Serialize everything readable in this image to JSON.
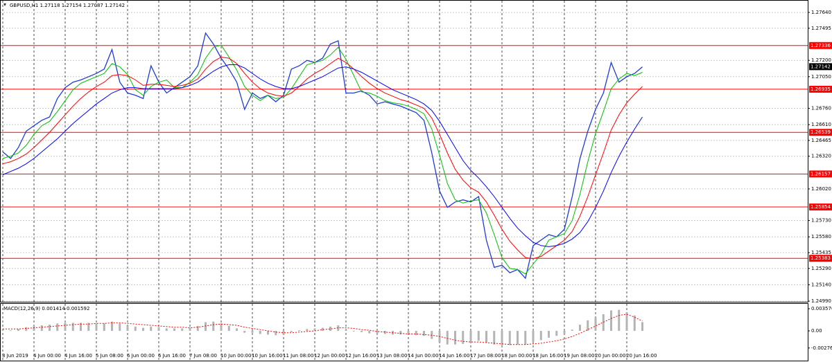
{
  "chart_data": [
    {
      "type": "line",
      "title": "GBPUSD,H1  1.27118 1.27154 1.27087 1.27142",
      "categories": [
        "3 Jun 2019",
        null,
        null,
        null,
        "4 Jun 00:00",
        null,
        null,
        null,
        "4 Jun 16:00",
        null,
        null,
        null,
        "5 Jun 08:00",
        null,
        null,
        null,
        "6 Jun 00:00",
        null,
        null,
        null,
        "6 Jun 16:00",
        null,
        null,
        null,
        "7 Jun 08:00",
        null,
        null,
        null,
        "10 Jun 00:00",
        null,
        null,
        null,
        "10 Jun 16:00",
        null,
        null,
        null,
        "11 Jun 08:00",
        null,
        null,
        null,
        "12 Jun 00:00",
        null,
        null,
        null,
        "12 Jun 16:00",
        null,
        null,
        null,
        "13 Jun 08:00",
        null,
        null,
        null,
        "14 Jun 00:00",
        null,
        null,
        null,
        "14 Jun 16:00",
        null,
        null,
        null,
        "17 Jun 08:00",
        null,
        null,
        null,
        "18 Jun 00:00",
        null,
        null,
        null,
        "18 Jun 16:00",
        null,
        null,
        null,
        "19 Jun 08:00",
        null,
        null,
        null,
        "20 Jun 00:00",
        null,
        null,
        null,
        "20 Jun 16:00",
        null,
        null
      ],
      "series": [
        {
          "color": "#1e3ad8",
          "values": [
            1.2636,
            1.263,
            1.264,
            1.2655,
            1.266,
            1.2665,
            1.2668,
            1.2685,
            1.2695,
            1.27,
            1.2702,
            1.2705,
            1.2708,
            1.2712,
            1.273,
            1.27,
            1.269,
            1.2688,
            1.2685,
            1.2715,
            1.27,
            1.269,
            1.2695,
            1.27,
            1.2705,
            1.2715,
            1.2745,
            1.2735,
            1.2722,
            1.2712,
            1.27,
            1.2675,
            1.269,
            1.2685,
            1.2688,
            1.2682,
            1.2688,
            1.2712,
            1.2715,
            1.272,
            1.2718,
            1.2722,
            1.2735,
            1.2738,
            1.269,
            1.269,
            1.2692,
            1.2688,
            1.268,
            1.2682,
            1.268,
            1.2678,
            1.2675,
            1.2672,
            1.2665,
            1.2635,
            1.26,
            1.2585,
            1.259,
            1.2592,
            1.259,
            1.2595,
            1.2555,
            1.253,
            1.2532,
            1.2525,
            1.2528,
            1.252,
            1.255,
            1.2555,
            1.256,
            1.2558,
            1.2565,
            1.2595,
            1.263,
            1.2655,
            1.2675,
            1.269,
            1.2718,
            1.27,
            1.2705,
            1.2708,
            1.2714
          ]
        },
        {
          "color": "#00c000",
          "values": [
            1.263,
            1.2632,
            1.2635,
            1.2642,
            1.2652,
            1.266,
            1.2664,
            1.2673,
            1.2683,
            1.2693,
            1.2699,
            1.2702,
            1.2705,
            1.2708,
            1.2717,
            1.2714,
            1.2707,
            1.2693,
            1.2688,
            1.2696,
            1.27,
            1.2702,
            1.2695,
            1.2695,
            1.27,
            1.2707,
            1.2722,
            1.2732,
            1.2734,
            1.2723,
            1.2711,
            1.2696,
            1.2688,
            1.2683,
            1.2688,
            1.2685,
            1.2686,
            1.2694,
            1.2705,
            1.2716,
            1.2718,
            1.272,
            1.2725,
            1.2732,
            1.2721,
            1.2706,
            1.2691,
            1.269,
            1.2687,
            1.2683,
            1.2681,
            1.268,
            1.2678,
            1.2675,
            1.2671,
            1.2657,
            1.2633,
            1.2607,
            1.2592,
            1.2589,
            1.2591,
            1.2592,
            1.258,
            1.256,
            1.2539,
            1.2529,
            1.2528,
            1.2524,
            1.2533,
            1.2542,
            1.2555,
            1.2558,
            1.2561,
            1.2573,
            1.2597,
            1.2627,
            1.2653,
            1.2673,
            1.2694,
            1.2703,
            1.2708,
            1.2706,
            1.2709
          ]
        },
        {
          "color": "#ff0000",
          "values": [
            1.2625,
            1.2627,
            1.263,
            1.2634,
            1.264,
            1.2647,
            1.2654,
            1.2662,
            1.267,
            1.2678,
            1.2685,
            1.2691,
            1.2696,
            1.27,
            1.2706,
            1.2707,
            1.2706,
            1.2702,
            1.2697,
            1.2698,
            1.2698,
            1.2697,
            1.2696,
            1.2697,
            1.2699,
            1.2703,
            1.2712,
            1.2719,
            1.2723,
            1.2722,
            1.2717,
            1.2708,
            1.27,
            1.2694,
            1.269,
            1.2688,
            1.2687,
            1.269,
            1.2696,
            1.2703,
            1.2708,
            1.2712,
            1.2717,
            1.2722,
            1.2718,
            1.2712,
            1.2705,
            1.2699,
            1.2694,
            1.269,
            1.2687,
            1.2684,
            1.2682,
            1.2679,
            1.2676,
            1.2667,
            1.2652,
            1.2635,
            1.262,
            1.261,
            1.2603,
            1.2599,
            1.259,
            1.2578,
            1.2565,
            1.2554,
            1.2546,
            1.2539,
            1.2538,
            1.254,
            1.2545,
            1.255,
            1.2555,
            1.2563,
            1.2577,
            1.2595,
            1.2615,
            1.2635,
            1.2656,
            1.267,
            1.2681,
            1.2689,
            1.2696
          ]
        },
        {
          "color": "#0000ff",
          "values": [
            1.2615,
            1.2618,
            1.2621,
            1.2625,
            1.263,
            1.2636,
            1.2642,
            1.2648,
            1.2655,
            1.2662,
            1.2668,
            1.2674,
            1.268,
            1.2685,
            1.269,
            1.2693,
            1.2695,
            1.2695,
            1.2694,
            1.2694,
            1.2694,
            1.2694,
            1.2694,
            1.2695,
            1.2697,
            1.27,
            1.2705,
            1.271,
            1.2714,
            1.2716,
            1.2716,
            1.2713,
            1.2708,
            1.2703,
            1.2699,
            1.2696,
            1.2694,
            1.2694,
            1.2696,
            1.2699,
            1.2702,
            1.2705,
            1.2709,
            1.2713,
            1.2714,
            1.2712,
            1.2709,
            1.2705,
            1.2701,
            1.2697,
            1.2693,
            1.269,
            1.2687,
            1.2684,
            1.268,
            1.2674,
            1.2664,
            1.2652,
            1.264,
            1.2628,
            1.2619,
            1.2612,
            1.2604,
            1.2595,
            1.2585,
            1.2575,
            1.2566,
            1.2559,
            1.2553,
            1.255,
            1.2549,
            1.255,
            1.2552,
            1.2556,
            1.2562,
            1.2572,
            1.2585,
            1.26,
            1.2617,
            1.2632,
            1.2645,
            1.2657,
            1.2668
          ]
        }
      ],
      "levels": {
        "color": "#ff0000",
        "values": [
          1.27336,
          1.26935,
          1.26539,
          1.26157,
          1.25854,
          1.25383
        ]
      },
      "current_price": 1.27142,
      "ylim": [
        1.24984,
        1.27754
      ],
      "yticks": [
        {
          "value": 1.2764,
          "label": "1.27640"
        },
        1.27495,
        {
          "value": 1.272,
          "label": "1.27200"
        },
        {
          "value": 1.2705,
          "label": "1.27050"
        },
        {
          "value": 1.2676,
          "label": "1.26760"
        },
        {
          "value": 1.2661,
          "label": "1.26610"
        },
        1.26465,
        {
          "value": 1.2632,
          "label": "1.26320"
        },
        {
          "value": 1.2602,
          "label": "1.26020"
        },
        {
          "value": 1.2573,
          "label": "1.25730"
        },
        {
          "value": 1.2558,
          "label": "1.25580"
        },
        1.25435,
        {
          "value": 1.2529,
          "label": "1.25290"
        },
        {
          "value": 1.2514,
          "label": "1.25140"
        },
        {
          "value": 1.2499,
          "label": "1.24990"
        }
      ],
      "grid": true
    },
    {
      "type": "macd",
      "title": "MACD(12,26,9) 0.001414 0.001592",
      "color": "#b4b4b4",
      "values": [
        0.0002,
        0.0001,
        0.0003,
        0.0006,
        0.0008,
        0.0009,
        0.001,
        0.0012,
        0.0013,
        0.0013,
        0.0013,
        0.0013,
        0.0012,
        0.0012,
        0.0015,
        0.0012,
        0.0009,
        0.0007,
        0.0005,
        0.0007,
        0.0006,
        0.0004,
        0.0004,
        0.0004,
        0.0005,
        0.0008,
        0.0014,
        0.0015,
        0.0012,
        0.0008,
        0.0004,
        -0.0003,
        -0.0003,
        -0.0005,
        -0.0006,
        -0.0007,
        -0.0006,
        -0.0002,
        0.0001,
        0.0003,
        0.0004,
        0.0005,
        0.0007,
        0.0009,
        0.0002,
        -0.0001,
        -0.0002,
        -0.0004,
        -0.0005,
        -0.0005,
        -0.0006,
        -0.0006,
        -0.0006,
        -0.0007,
        -0.0008,
        -0.0013,
        -0.0019,
        -0.0022,
        -0.0022,
        -0.0021,
        -0.0019,
        -0.0016,
        -0.0019,
        -0.0022,
        -0.0023,
        -0.0023,
        -0.0022,
        -0.0022,
        -0.0018,
        -0.0015,
        -0.0011,
        -0.0008,
        -0.0005,
        0.0002,
        0.001,
        0.0017,
        0.0022,
        0.0027,
        0.0033,
        0.0034,
        0.003,
        0.0025,
        0.001414
      ],
      "signal": {
        "color": "#ff0000",
        "values": [
          0.0003,
          0.0003,
          0.0003,
          0.0004,
          0.0005,
          0.0006,
          0.0007,
          0.0008,
          0.0009,
          0.001,
          0.0011,
          0.0011,
          0.0012,
          0.0012,
          0.0013,
          0.0013,
          0.0012,
          0.0011,
          0.001,
          0.0009,
          0.0008,
          0.0007,
          0.0006,
          0.0006,
          0.0005,
          0.0006,
          0.0008,
          0.001,
          0.0011,
          0.001,
          0.0009,
          0.0006,
          0.0004,
          0.0002,
          0.0,
          -0.0002,
          -0.0003,
          -0.0003,
          -0.0002,
          -0.0001,
          0.0,
          0.0002,
          0.0003,
          0.0005,
          0.0005,
          0.0004,
          0.0002,
          0.0001,
          -0.0001,
          -0.0002,
          -0.0003,
          -0.0004,
          -0.0005,
          -0.0005,
          -0.0006,
          -0.0007,
          -0.0009,
          -0.0012,
          -0.0015,
          -0.0017,
          -0.0018,
          -0.0018,
          -0.0019,
          -0.002,
          -0.0021,
          -0.0022,
          -0.0022,
          -0.0022,
          -0.0021,
          -0.002,
          -0.0018,
          -0.0016,
          -0.0013,
          -0.0009,
          -0.0004,
          0.0002,
          0.0008,
          0.0014,
          0.002,
          0.0025,
          0.0027,
          0.0022,
          0.001592
        ]
      },
      "ylim": [
        -0.00469,
        0.00425
      ],
      "yticks": [
        0.003576,
        {
          "value": 0,
          "label": "0.00"
        },
        -0.002764
      ]
    }
  ]
}
